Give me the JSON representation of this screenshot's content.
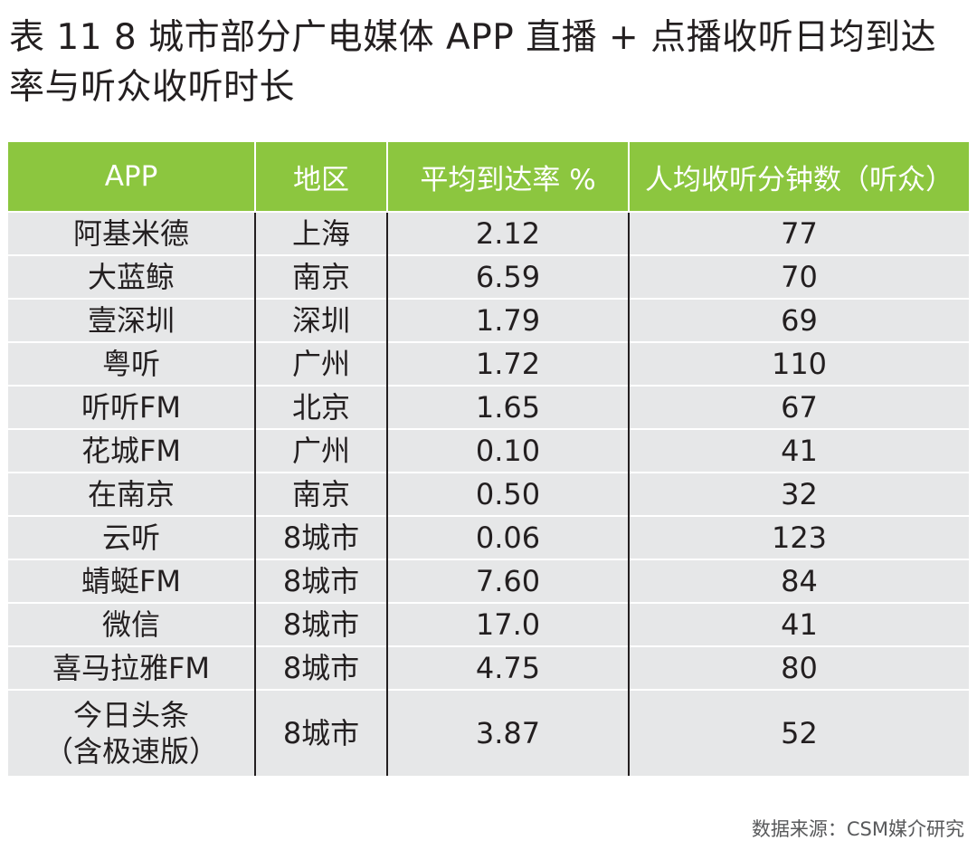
{
  "title": "表 11 8 城市部分广电媒体 APP 直播 + 点播收听日均到达率与听众收听时长",
  "table": {
    "headers": [
      "APP",
      "地区",
      "平均到达率 %",
      "人均收听分钟数（听众）"
    ],
    "rows": [
      {
        "app": "阿基米德",
        "region": "上海",
        "rate": "2.12",
        "minutes": "77"
      },
      {
        "app": "大蓝鲸",
        "region": "南京",
        "rate": "6.59",
        "minutes": "70"
      },
      {
        "app": "壹深圳",
        "region": "深圳",
        "rate": "1.79",
        "minutes": "69"
      },
      {
        "app": "粤听",
        "region": "广州",
        "rate": "1.72",
        "minutes": "110"
      },
      {
        "app": "听听FM",
        "region": "北京",
        "rate": "1.65",
        "minutes": "67"
      },
      {
        "app": "花城FM",
        "region": "广州",
        "rate": "0.10",
        "minutes": "41"
      },
      {
        "app": "在南京",
        "region": "南京",
        "rate": "0.50",
        "minutes": "32"
      },
      {
        "app": "云听",
        "region": "8城市",
        "rate": "0.06",
        "minutes": "123"
      },
      {
        "app": "蜻蜓FM",
        "region": "8城市",
        "rate": "7.60",
        "minutes": "84"
      },
      {
        "app": "微信",
        "region": "8城市",
        "rate": "17.0",
        "minutes": "41"
      },
      {
        "app": "喜马拉雅FM",
        "region": "8城市",
        "rate": "4.75",
        "minutes": "80"
      }
    ],
    "last_row": {
      "app_line1": "今日头条",
      "app_line2": "（含极速版）",
      "region": "8城市",
      "rate": "3.87",
      "minutes": "52"
    }
  },
  "source": "数据来源：CSM媒介研究"
}
